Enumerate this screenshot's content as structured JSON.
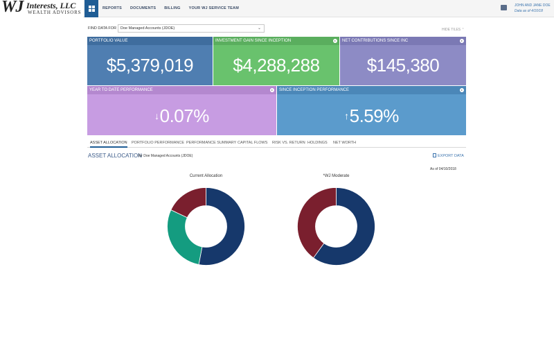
{
  "header": {
    "logo_mark": "WJ",
    "logo_name": "Interests, LLC",
    "logo_sub": "WEALTH ADVISORS",
    "nav": [
      "REPORTS",
      "DOCUMENTS",
      "BILLING",
      "YOUR WJ SERVICE TEAM"
    ],
    "user_name": "JOHN AND JANE DOE",
    "data_as_of": "Data as of 4/10/18"
  },
  "filter": {
    "label": "FIND DATA FOR",
    "selected": "Doe Managed Accounts (JDOE)",
    "hide_tiles": "HIDE TILES"
  },
  "tiles": {
    "portfolio_value": {
      "label": "PORTFOLIO VALUE",
      "value": "$5,379,019"
    },
    "investment_gain": {
      "label": "INVESTMENT GAIN SINCE INCEPTION",
      "value": "$4,288,288"
    },
    "net_contributions": {
      "label": "NET CONTRIBUTIONS SINCE INC",
      "value": "$145,380"
    },
    "ytd_performance": {
      "label": "YEAR TO DATE PERFORMANCE",
      "value": "0.07%",
      "direction": "down"
    },
    "inception_performance": {
      "label": "SINCE INCEPTION PERFORMANCE",
      "value": "5.59%",
      "direction": "up"
    }
  },
  "tabs": [
    "ASSET ALLOCATION",
    "PORTFOLIO PERFORMANCE",
    "PERFORMANCE SUMMARY",
    "CAPITAL FLOWS",
    "RISK VS. RETURN",
    "HOLDINGS",
    "NET WORTH"
  ],
  "active_tab": "ASSET ALLOCATION",
  "section": {
    "title": "ASSET ALLOCATION",
    "subtitle": "for Doe Managed Accounts (JDOE)",
    "export": "EXPORT DATA",
    "as_of": "As of 04/10/2018"
  },
  "chart_data": [
    {
      "type": "pie",
      "title": "Current Allocation",
      "values": [
        0.53,
        0.29,
        0.18
      ],
      "colors": [
        "#16386b",
        "#149c80",
        "#7a1f2e"
      ]
    },
    {
      "type": "pie",
      "title": "*WJ Moderate",
      "values": [
        0.6,
        0.4
      ],
      "colors": [
        "#16386b",
        "#7a1f2e"
      ]
    }
  ]
}
